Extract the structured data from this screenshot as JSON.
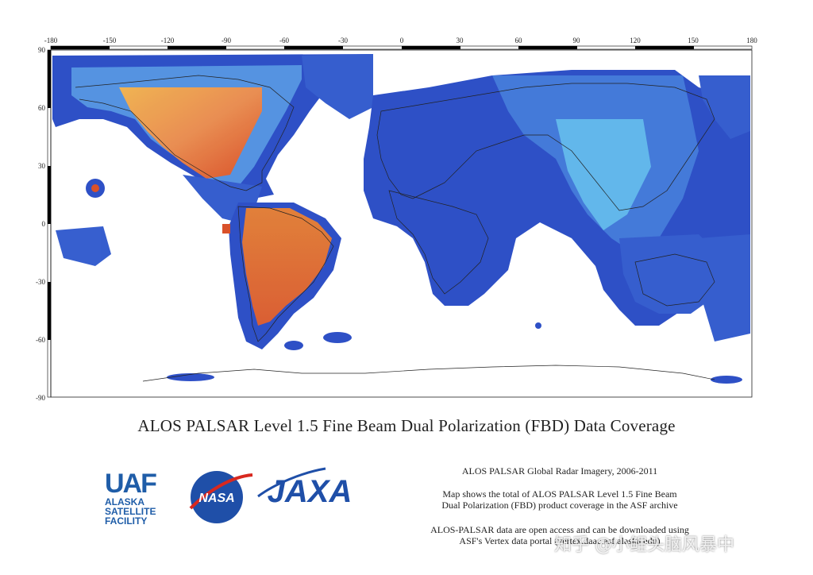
{
  "map": {
    "lon_ticks": [
      "-180",
      "-150",
      "-120",
      "-90",
      "-60",
      "-30",
      "0",
      "30",
      "60",
      "90",
      "120",
      "150",
      "180"
    ],
    "lat_ticks": [
      "90",
      "60",
      "30",
      "0",
      "-30",
      "-60",
      "-90"
    ],
    "colors": {
      "low": "#1e3fb8",
      "mid": "#4fb3e8",
      "high": "#f0a43a",
      "peak": "#d8481f",
      "coast": "#222222"
    }
  },
  "title": "ALOS PALSAR Level 1.5 Fine Beam Dual Polarization (FBD) Data Coverage",
  "info": {
    "line1": "ALOS PALSAR Global Radar Imagery, 2006-2011",
    "line2": "Map shows the total of ALOS PALSAR Level 1.5 Fine Beam",
    "line3": "Dual Polarization (FBD) product coverage in the ASF archive",
    "line4": "ALOS-PALSAR data are open access and can be downloaded using",
    "line5": "ASF's Vertex data portal (vertex.daac.asf.alaska.edu)"
  },
  "logos": {
    "uaf_mark": "UAF",
    "uaf_line1": "ALASKA",
    "uaf_line2": "SATELLITE",
    "uaf_line3": "FACILITY",
    "nasa": "NASA",
    "jaxa": "JAXA"
  },
  "watermark": "知乎 @小鲤头脑风暴中"
}
